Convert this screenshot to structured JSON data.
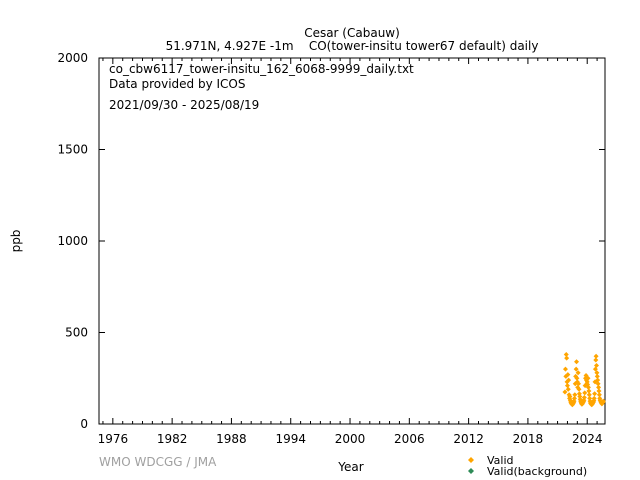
{
  "chart_data": {
    "type": "scatter",
    "title": "Cesar (Cabauw)",
    "subtitle": "51.971N, 4.927E -1m    CO(tower-insitu tower67 default) daily",
    "info_lines": [
      "co_cbw6117_tower-insitu_162_6068-9999_daily.txt",
      "Data provided by ICOS",
      "2021/09/30 - 2025/08/19"
    ],
    "xlabel": "Year",
    "ylabel": "ppb",
    "xlim": [
      1974.6,
      2025.8
    ],
    "ylim": [
      0,
      2000
    ],
    "x_ticks": [
      1976,
      1982,
      1988,
      1994,
      2000,
      2006,
      2012,
      2018,
      2024
    ],
    "y_ticks": [
      0,
      500,
      1000,
      1500,
      2000
    ],
    "grid": false,
    "legend_position": "bottom-right",
    "watermark": "WMO WDCGG / JMA",
    "colors": {
      "valid": "#ffa500",
      "valid_background": "#2e8b57"
    },
    "series": [
      {
        "name": "Valid",
        "points": [
          [
            2021.75,
            175
          ],
          [
            2021.8,
            300
          ],
          [
            2021.84,
            260
          ],
          [
            2021.88,
            380
          ],
          [
            2021.92,
            360
          ],
          [
            2021.96,
            230
          ],
          [
            2022.0,
            210
          ],
          [
            2022.04,
            270
          ],
          [
            2022.08,
            190
          ],
          [
            2022.12,
            240
          ],
          [
            2022.17,
            160
          ],
          [
            2022.21,
            140
          ],
          [
            2022.25,
            150
          ],
          [
            2022.29,
            130
          ],
          [
            2022.33,
            120
          ],
          [
            2022.38,
            115
          ],
          [
            2022.42,
            110
          ],
          [
            2022.46,
            108
          ],
          [
            2022.5,
            105
          ],
          [
            2022.54,
            110
          ],
          [
            2022.58,
            112
          ],
          [
            2022.63,
            118
          ],
          [
            2022.67,
            125
          ],
          [
            2022.71,
            140
          ],
          [
            2022.75,
            160
          ],
          [
            2022.79,
            220
          ],
          [
            2022.83,
            260
          ],
          [
            2022.88,
            300
          ],
          [
            2022.92,
            340
          ],
          [
            2022.96,
            250
          ],
          [
            2023.0,
            230
          ],
          [
            2023.04,
            200
          ],
          [
            2023.08,
            280
          ],
          [
            2023.12,
            220
          ],
          [
            2023.17,
            190
          ],
          [
            2023.21,
            165
          ],
          [
            2023.25,
            150
          ],
          [
            2023.29,
            135
          ],
          [
            2023.33,
            125
          ],
          [
            2023.38,
            118
          ],
          [
            2023.42,
            112
          ],
          [
            2023.46,
            108
          ],
          [
            2023.5,
            110
          ],
          [
            2023.54,
            115
          ],
          [
            2023.58,
            118
          ],
          [
            2023.63,
            122
          ],
          [
            2023.67,
            130
          ],
          [
            2023.71,
            145
          ],
          [
            2023.75,
            170
          ],
          [
            2023.79,
            210
          ],
          [
            2023.83,
            250
          ],
          [
            2023.88,
            265
          ],
          [
            2023.92,
            240
          ],
          [
            2023.96,
            220
          ],
          [
            2024.0,
            230
          ],
          [
            2024.04,
            215
          ],
          [
            2024.08,
            250
          ],
          [
            2024.12,
            200
          ],
          [
            2024.17,
            180
          ],
          [
            2024.21,
            160
          ],
          [
            2024.25,
            140
          ],
          [
            2024.29,
            125
          ],
          [
            2024.33,
            115
          ],
          [
            2024.38,
            110
          ],
          [
            2024.42,
            108
          ],
          [
            2024.46,
            105
          ],
          [
            2024.5,
            108
          ],
          [
            2024.54,
            112
          ],
          [
            2024.58,
            116
          ],
          [
            2024.63,
            120
          ],
          [
            2024.67,
            128
          ],
          [
            2024.71,
            140
          ],
          [
            2024.75,
            165
          ],
          [
            2024.79,
            230
          ],
          [
            2024.83,
            300
          ],
          [
            2024.87,
            350
          ],
          [
            2024.9,
            370
          ],
          [
            2024.94,
            320
          ],
          [
            2024.98,
            280
          ],
          [
            2025.02,
            260
          ],
          [
            2025.06,
            240
          ],
          [
            2025.1,
            220
          ],
          [
            2025.15,
            200
          ],
          [
            2025.19,
            180
          ],
          [
            2025.23,
            160
          ],
          [
            2025.27,
            140
          ],
          [
            2025.31,
            130
          ],
          [
            2025.35,
            125
          ],
          [
            2025.4,
            118
          ],
          [
            2025.44,
            115
          ],
          [
            2025.48,
            110
          ],
          [
            2025.52,
            112
          ],
          [
            2025.56,
            116
          ],
          [
            2025.6,
            120
          ],
          [
            2025.63,
            125
          ]
        ]
      },
      {
        "name": "Valid(background)",
        "points": []
      }
    ]
  }
}
